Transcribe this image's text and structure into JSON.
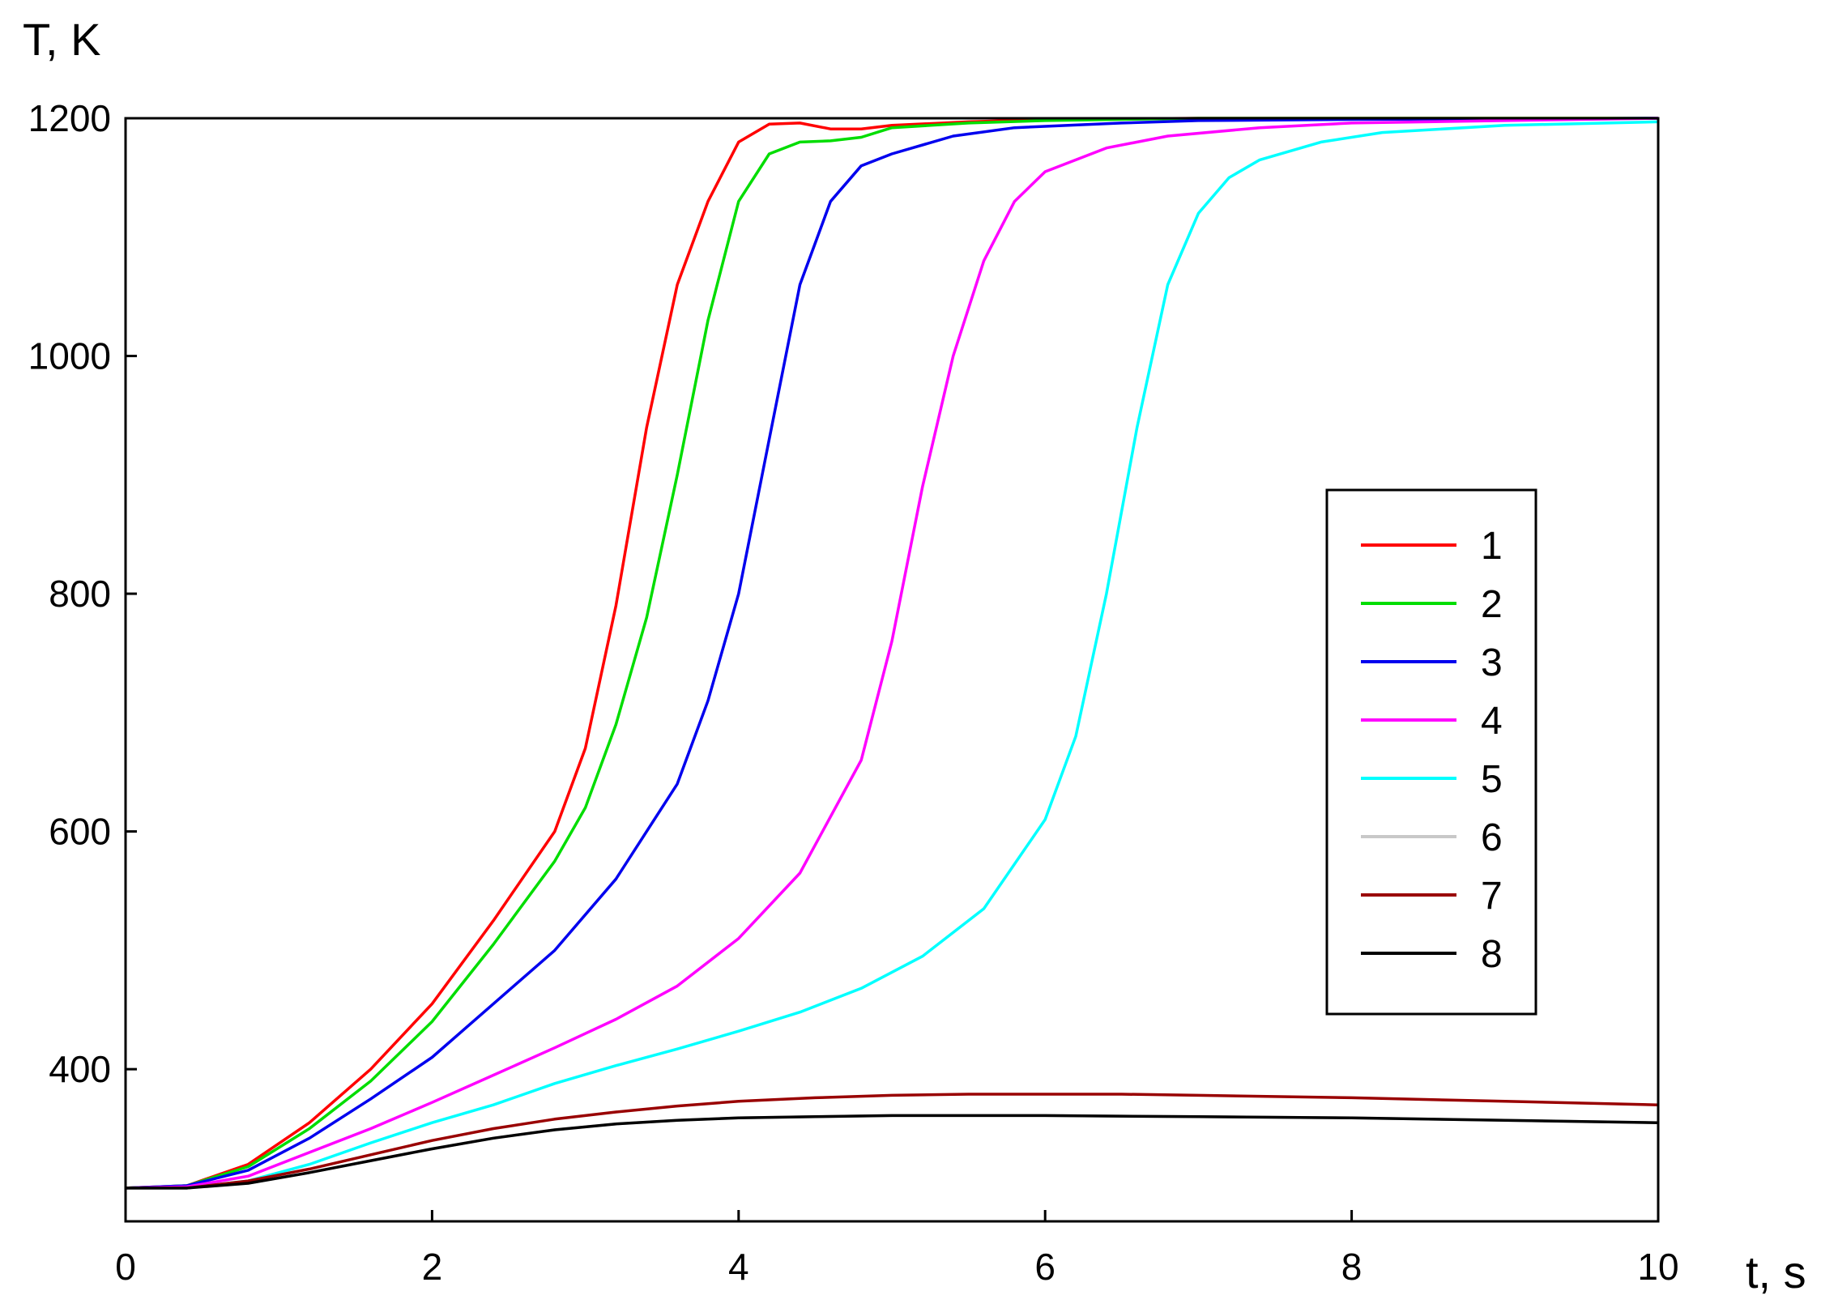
{
  "chart_data": {
    "type": "line",
    "xlabel": "t, s",
    "ylabel": "T, K",
    "xlim": [
      0,
      10
    ],
    "ylim": [
      272,
      1200
    ],
    "xticks": [
      0,
      2,
      4,
      6,
      8,
      10
    ],
    "yticks": [
      400,
      600,
      800,
      1000,
      1200
    ],
    "xtick_labels": [
      "0",
      "2",
      "4",
      "6",
      "8",
      "10"
    ],
    "ytick_labels": [
      "400",
      "600",
      "800",
      "1000",
      "1200"
    ],
    "grid": false,
    "legend_position": "right",
    "series": [
      {
        "name": "1",
        "color": "#ff0000",
        "x": [
          0,
          0.4,
          0.8,
          1.2,
          1.6,
          2.0,
          2.4,
          2.8,
          3.0,
          3.2,
          3.4,
          3.6,
          3.8,
          4.0,
          4.2,
          4.4,
          4.6,
          4.8,
          5.0,
          5.5,
          6,
          7,
          8,
          10
        ],
        "y": [
          300,
          302,
          320,
          355,
          400,
          455,
          525,
          600,
          670,
          790,
          940,
          1060,
          1130,
          1180,
          1195,
          1196,
          1191,
          1191,
          1194,
          1197,
          1199,
          1200,
          1200,
          1200
        ]
      },
      {
        "name": "2",
        "color": "#00dd00",
        "x": [
          0,
          0.4,
          0.8,
          1.2,
          1.6,
          2.0,
          2.4,
          2.8,
          3.0,
          3.2,
          3.4,
          3.6,
          3.8,
          4.0,
          4.2,
          4.4,
          4.6,
          4.8,
          5.0,
          5.5,
          6,
          7,
          8,
          10
        ],
        "y": [
          300,
          302,
          318,
          350,
          390,
          440,
          505,
          575,
          620,
          690,
          780,
          900,
          1030,
          1130,
          1170,
          1180,
          1181,
          1184,
          1192,
          1196,
          1198,
          1200,
          1200,
          1200
        ]
      },
      {
        "name": "3",
        "color": "#0000ee",
        "x": [
          0,
          0.4,
          0.8,
          1.2,
          1.6,
          2.0,
          2.4,
          2.8,
          3.2,
          3.6,
          3.8,
          4.0,
          4.2,
          4.4,
          4.6,
          4.8,
          5.0,
          5.4,
          5.8,
          6.5,
          7,
          8,
          10
        ],
        "y": [
          300,
          302,
          315,
          342,
          375,
          410,
          455,
          500,
          560,
          640,
          710,
          800,
          930,
          1060,
          1130,
          1160,
          1170,
          1185,
          1192,
          1196,
          1198,
          1199,
          1200
        ]
      },
      {
        "name": "4",
        "color": "#ff00ff",
        "x": [
          0,
          0.4,
          0.8,
          1.2,
          1.6,
          2.0,
          2.4,
          2.8,
          3.2,
          3.6,
          4.0,
          4.4,
          4.8,
          5.0,
          5.2,
          5.4,
          5.6,
          5.8,
          6.0,
          6.4,
          6.8,
          7.4,
          8,
          9,
          10
        ],
        "y": [
          300,
          301,
          310,
          330,
          350,
          372,
          395,
          418,
          442,
          470,
          510,
          565,
          660,
          760,
          890,
          1000,
          1080,
          1130,
          1155,
          1175,
          1185,
          1192,
          1196,
          1198,
          1200
        ]
      },
      {
        "name": "5",
        "color": "#00ffff",
        "x": [
          0,
          0.4,
          0.8,
          1.2,
          1.6,
          2.0,
          2.4,
          2.8,
          3.2,
          3.6,
          4.0,
          4.4,
          4.8,
          5.2,
          5.6,
          6.0,
          6.2,
          6.4,
          6.6,
          6.8,
          7.0,
          7.2,
          7.4,
          7.8,
          8.2,
          9,
          10
        ],
        "y": [
          300,
          300,
          306,
          320,
          338,
          355,
          370,
          388,
          403,
          417,
          432,
          448,
          468,
          495,
          535,
          610,
          680,
          800,
          940,
          1060,
          1120,
          1150,
          1165,
          1180,
          1188,
          1194,
          1197
        ]
      },
      {
        "name": "6",
        "color": "#c8c8c8",
        "x": [
          0,
          0.4,
          0.8,
          1.2,
          1.6,
          2.0,
          2.4,
          2.8,
          3.2,
          3.6,
          4.0,
          4.5,
          5,
          6,
          7,
          8,
          9,
          10
        ],
        "y": [
          300,
          300,
          304,
          313,
          323,
          333,
          342,
          349,
          354,
          357,
          359,
          360,
          361,
          361,
          360,
          359,
          357,
          355
        ]
      },
      {
        "name": "7",
        "color": "#990000",
        "x": [
          0,
          0.4,
          0.8,
          1.2,
          1.6,
          2.0,
          2.4,
          2.8,
          3.2,
          3.6,
          4.0,
          4.5,
          5,
          5.5,
          6,
          6.5,
          7,
          8,
          9,
          10
        ],
        "y": [
          300,
          300,
          306,
          316,
          328,
          340,
          350,
          358,
          364,
          369,
          373,
          376,
          378,
          379,
          379,
          379,
          378,
          376,
          373,
          370
        ]
      },
      {
        "name": "8",
        "color": "#000000",
        "x": [
          0,
          0.4,
          0.8,
          1.2,
          1.6,
          2.0,
          2.4,
          2.8,
          3.2,
          3.6,
          4.0,
          4.5,
          5,
          6,
          7,
          8,
          9,
          10
        ],
        "y": [
          300,
          300,
          304,
          313,
          323,
          333,
          342,
          349,
          354,
          357,
          359,
          360,
          361,
          361,
          360,
          359,
          357,
          355
        ]
      }
    ]
  }
}
